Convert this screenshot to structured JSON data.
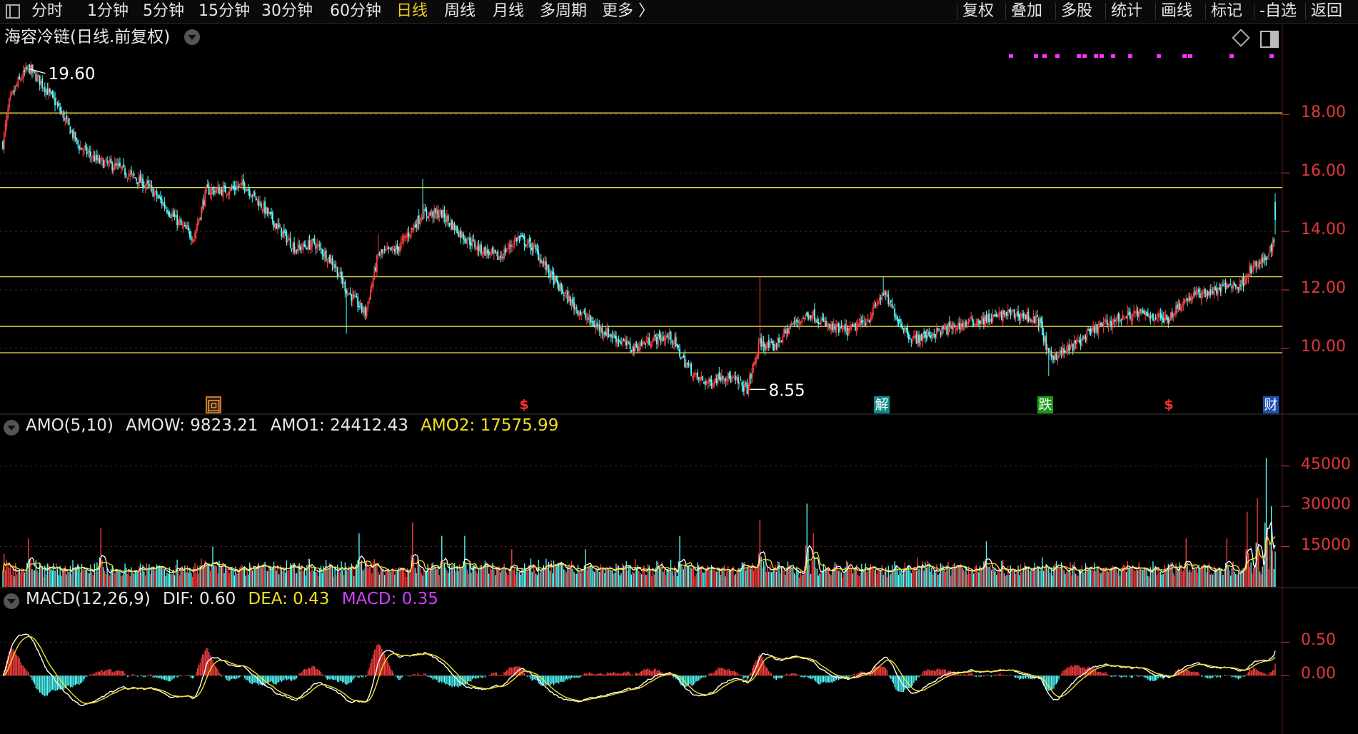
{
  "toolbar": {
    "periods": [
      "分时",
      "1分钟",
      "5分钟",
      "15分钟",
      "30分钟",
      "60分钟",
      "日线",
      "周线",
      "月线",
      "多周期",
      "更多 〉"
    ],
    "active_period": "日线",
    "right_items": [
      "复权",
      "叠加",
      "多股",
      "统计",
      "画线",
      "标记",
      "-自选",
      "返回"
    ]
  },
  "colors": {
    "up": "#ff4040",
    "down": "#54ffff",
    "yellow": "#f0e020",
    "white": "#ffffff",
    "magenta": "#ff30ff",
    "axis": "#e03838",
    "hline": "#e5d54a"
  },
  "main_panel": {
    "title": "海容冷链(日线.前复权)",
    "high_label": "19.60",
    "low_label": "8.55",
    "y_ticks": [
      "18.00",
      "16.00",
      "14.00",
      "12.00",
      "10.00"
    ],
    "y_range": [
      7.8,
      20.4
    ],
    "horizontal_lines": [
      18.05,
      15.5,
      12.45,
      10.75,
      9.85
    ]
  },
  "event_markers": [
    {
      "label": "回",
      "type": "box-orange"
    },
    {
      "label": "$",
      "type": "red-dollar"
    },
    {
      "label": "解",
      "type": "teal"
    },
    {
      "label": "跌",
      "type": "green"
    },
    {
      "label": "$",
      "type": "red-dollar"
    },
    {
      "label": "财",
      "type": "blue"
    }
  ],
  "amo_panel": {
    "name": "AMO(5,10)",
    "amow_label": "AMOW:",
    "amow_value": "9823.21",
    "amo1_label": "AMO1:",
    "amo1_value": "24412.43",
    "amo2_label": "AMO2:",
    "amo2_value": "17575.99",
    "y_ticks": [
      "45000",
      "30000",
      "15000"
    ]
  },
  "macd_panel": {
    "name": "MACD(12,26,9)",
    "dif_label": "DIF:",
    "dif_value": "0.60",
    "dea_label": "DEA:",
    "dea_value": "0.43",
    "macd_label": "MACD:",
    "macd_value": "0.35",
    "y_ticks": [
      "0.50",
      "0.00"
    ]
  },
  "chart_data": {
    "type": "candlestick",
    "price_anchors": [
      [
        0,
        17.0
      ],
      [
        5,
        18.4
      ],
      [
        12,
        19.1
      ],
      [
        20,
        19.6
      ],
      [
        30,
        19.1
      ],
      [
        40,
        18.5
      ],
      [
        48,
        17.9
      ],
      [
        60,
        16.9
      ],
      [
        75,
        16.4
      ],
      [
        90,
        16.2
      ],
      [
        105,
        15.8
      ],
      [
        115,
        15.5
      ],
      [
        125,
        15.0
      ],
      [
        140,
        14.2
      ],
      [
        150,
        13.8
      ],
      [
        160,
        15.4
      ],
      [
        175,
        15.4
      ],
      [
        190,
        15.6
      ],
      [
        205,
        14.8
      ],
      [
        215,
        14.2
      ],
      [
        230,
        13.4
      ],
      [
        245,
        13.6
      ],
      [
        260,
        12.9
      ],
      [
        270,
        12.0
      ],
      [
        285,
        11.2
      ],
      [
        295,
        13.2
      ],
      [
        310,
        13.4
      ],
      [
        330,
        14.6
      ],
      [
        345,
        14.6
      ],
      [
        360,
        13.9
      ],
      [
        375,
        13.4
      ],
      [
        390,
        13.1
      ],
      [
        405,
        13.8
      ],
      [
        418,
        13.4
      ],
      [
        435,
        12.2
      ],
      [
        450,
        11.4
      ],
      [
        465,
        10.8
      ],
      [
        480,
        10.4
      ],
      [
        495,
        10.0
      ],
      [
        510,
        10.3
      ],
      [
        525,
        10.4
      ],
      [
        535,
        9.6
      ],
      [
        545,
        9.0
      ],
      [
        555,
        8.8
      ],
      [
        565,
        9.1
      ],
      [
        575,
        8.9
      ],
      [
        585,
        8.6
      ],
      [
        595,
        10.2
      ],
      [
        605,
        10.0
      ],
      [
        620,
        10.8
      ],
      [
        635,
        11.2
      ],
      [
        650,
        10.7
      ],
      [
        665,
        10.6
      ],
      [
        680,
        11.0
      ],
      [
        692,
        11.9
      ],
      [
        705,
        10.9
      ],
      [
        715,
        10.3
      ],
      [
        730,
        10.5
      ],
      [
        745,
        10.7
      ],
      [
        760,
        10.9
      ],
      [
        775,
        11.0
      ],
      [
        790,
        11.2
      ],
      [
        805,
        11.1
      ],
      [
        815,
        10.9
      ],
      [
        822,
        9.7
      ],
      [
        835,
        9.9
      ],
      [
        845,
        10.2
      ],
      [
        860,
        10.7
      ],
      [
        875,
        11.0
      ],
      [
        890,
        11.2
      ],
      [
        905,
        11.1
      ],
      [
        915,
        11.0
      ],
      [
        925,
        11.5
      ],
      [
        935,
        11.8
      ],
      [
        945,
        11.9
      ],
      [
        955,
        12.0
      ],
      [
        965,
        12.2
      ],
      [
        972,
        12.1
      ],
      [
        980,
        12.7
      ],
      [
        992,
        13.0
      ],
      [
        1000,
        13.8
      ]
    ],
    "amo_spikes": [
      [
        20,
        18000
      ],
      [
        77,
        22000
      ],
      [
        165,
        15000
      ],
      [
        280,
        20000
      ],
      [
        322,
        24000
      ],
      [
        345,
        19000
      ],
      [
        363,
        19000
      ],
      [
        400,
        14000
      ],
      [
        458,
        14000
      ],
      [
        532,
        19000
      ],
      [
        595,
        25000
      ],
      [
        632,
        31000
      ],
      [
        637,
        20000
      ],
      [
        773,
        17000
      ],
      [
        930,
        18000
      ],
      [
        962,
        18000
      ],
      [
        978,
        28000
      ],
      [
        986,
        33000
      ],
      [
        993,
        48000
      ],
      [
        997,
        30000
      ]
    ],
    "macd_range": [
      -0.85,
      0.92
    ],
    "series": [
      {
        "name": "DIF"
      },
      {
        "name": "DEA"
      },
      {
        "name": "MACD"
      },
      {
        "name": "AMOW"
      },
      {
        "name": "AMO1"
      },
      {
        "name": "AMO2"
      }
    ]
  }
}
